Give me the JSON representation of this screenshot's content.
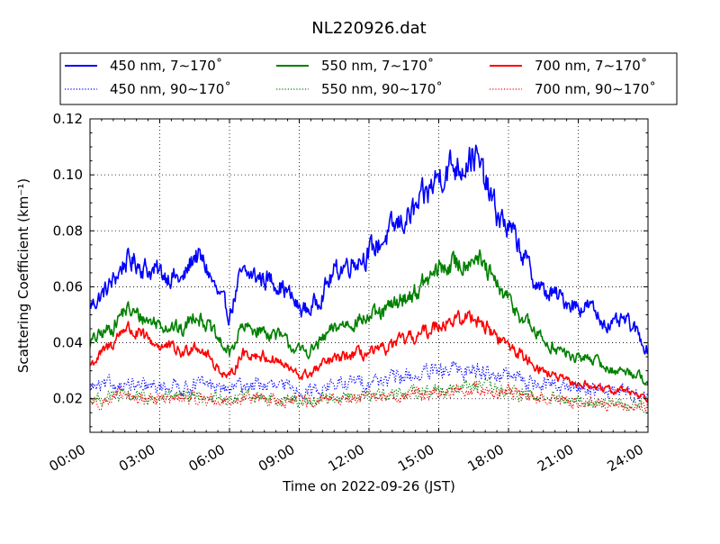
{
  "chart_data": {
    "type": "line",
    "title": "NL220926.dat",
    "xlabel": "Time on 2022-09-26 (JST)",
    "ylabel": "Scattering Coefficient (km⁻¹)",
    "xlim": [
      0,
      24
    ],
    "ylim": [
      0.008,
      0.12
    ],
    "grid": true,
    "legend_position": "top",
    "x_ticks": [
      0,
      3,
      6,
      9,
      12,
      15,
      18,
      21,
      24
    ],
    "x_tick_labels": [
      "00:00",
      "03:00",
      "06:00",
      "09:00",
      "12:00",
      "15:00",
      "18:00",
      "21:00",
      "24:00"
    ],
    "y_ticks": [
      0.02,
      0.04,
      0.06,
      0.08,
      0.1,
      0.12
    ],
    "y_tick_labels": [
      "0.02",
      "0.04",
      "0.06",
      "0.08",
      "0.10",
      "0.12"
    ],
    "x": [
      0,
      0.5,
      1,
      1.5,
      2,
      2.5,
      3,
      3.5,
      4,
      4.5,
      5,
      5.5,
      6,
      6.5,
      7,
      7.5,
      8,
      8.5,
      9,
      9.5,
      10,
      10.5,
      11,
      11.5,
      12,
      12.5,
      13,
      13.5,
      14,
      14.5,
      15,
      15.5,
      16,
      16.5,
      17,
      17.5,
      18,
      18.5,
      19,
      19.5,
      20,
      20.5,
      21,
      21.5,
      22,
      22.5,
      23,
      23.5,
      24
    ],
    "series": [
      {
        "name": "450 nm, 7∼170˚",
        "color": "#0000ff",
        "style": "solid",
        "values": [
          0.053,
          0.057,
          0.062,
          0.069,
          0.069,
          0.066,
          0.065,
          0.064,
          0.062,
          0.072,
          0.067,
          0.057,
          0.05,
          0.064,
          0.064,
          0.063,
          0.062,
          0.058,
          0.052,
          0.052,
          0.058,
          0.065,
          0.068,
          0.07,
          0.072,
          0.076,
          0.08,
          0.084,
          0.087,
          0.093,
          0.1,
          0.103,
          0.104,
          0.108,
          0.097,
          0.086,
          0.081,
          0.074,
          0.064,
          0.058,
          0.057,
          0.055,
          0.053,
          0.053,
          0.048,
          0.046,
          0.048,
          0.044,
          0.037
        ]
      },
      {
        "name": "550 nm, 7∼170˚",
        "color": "#008000",
        "style": "solid",
        "values": [
          0.04,
          0.043,
          0.046,
          0.052,
          0.05,
          0.048,
          0.047,
          0.046,
          0.044,
          0.051,
          0.047,
          0.041,
          0.036,
          0.045,
          0.045,
          0.044,
          0.043,
          0.04,
          0.037,
          0.037,
          0.041,
          0.045,
          0.047,
          0.048,
          0.049,
          0.05,
          0.053,
          0.056,
          0.058,
          0.062,
          0.066,
          0.068,
          0.068,
          0.072,
          0.066,
          0.06,
          0.055,
          0.05,
          0.045,
          0.041,
          0.038,
          0.036,
          0.034,
          0.035,
          0.032,
          0.03,
          0.03,
          0.029,
          0.026
        ]
      },
      {
        "name": "700 nm, 7∼170˚",
        "color": "#ff0000",
        "style": "solid",
        "values": [
          0.032,
          0.036,
          0.04,
          0.046,
          0.043,
          0.041,
          0.039,
          0.038,
          0.036,
          0.04,
          0.036,
          0.031,
          0.027,
          0.036,
          0.036,
          0.035,
          0.034,
          0.031,
          0.028,
          0.029,
          0.032,
          0.034,
          0.035,
          0.036,
          0.036,
          0.037,
          0.039,
          0.041,
          0.042,
          0.044,
          0.047,
          0.048,
          0.048,
          0.05,
          0.046,
          0.042,
          0.039,
          0.036,
          0.033,
          0.03,
          0.028,
          0.026,
          0.025,
          0.025,
          0.023,
          0.023,
          0.023,
          0.022,
          0.02
        ]
      },
      {
        "name": "450 nm, 90∼170˚",
        "color": "#0000ff",
        "style": "dotted",
        "values": [
          0.024,
          0.024,
          0.025,
          0.025,
          0.024,
          0.024,
          0.024,
          0.025,
          0.024,
          0.025,
          0.025,
          0.024,
          0.023,
          0.025,
          0.025,
          0.025,
          0.024,
          0.024,
          0.023,
          0.023,
          0.024,
          0.025,
          0.025,
          0.026,
          0.026,
          0.027,
          0.027,
          0.028,
          0.028,
          0.029,
          0.029,
          0.03,
          0.03,
          0.031,
          0.03,
          0.029,
          0.028,
          0.027,
          0.026,
          0.025,
          0.025,
          0.024,
          0.024,
          0.024,
          0.023,
          0.023,
          0.023,
          0.022,
          0.021
        ]
      },
      {
        "name": "550 nm, 90∼170˚",
        "color": "#008000",
        "style": "dotted",
        "values": [
          0.02,
          0.02,
          0.021,
          0.021,
          0.021,
          0.02,
          0.02,
          0.021,
          0.02,
          0.021,
          0.021,
          0.02,
          0.019,
          0.021,
          0.021,
          0.021,
          0.02,
          0.02,
          0.019,
          0.019,
          0.02,
          0.02,
          0.021,
          0.021,
          0.021,
          0.022,
          0.022,
          0.022,
          0.023,
          0.023,
          0.023,
          0.024,
          0.024,
          0.025,
          0.024,
          0.023,
          0.022,
          0.022,
          0.021,
          0.02,
          0.02,
          0.019,
          0.019,
          0.019,
          0.019,
          0.018,
          0.018,
          0.018,
          0.017
        ]
      },
      {
        "name": "700 nm, 90∼170˚",
        "color": "#ff0000",
        "style": "dotted",
        "values": [
          0.019,
          0.019,
          0.02,
          0.021,
          0.02,
          0.02,
          0.02,
          0.02,
          0.02,
          0.02,
          0.02,
          0.019,
          0.019,
          0.02,
          0.02,
          0.02,
          0.019,
          0.019,
          0.019,
          0.019,
          0.019,
          0.02,
          0.02,
          0.02,
          0.02,
          0.021,
          0.021,
          0.021,
          0.022,
          0.022,
          0.022,
          0.023,
          0.023,
          0.024,
          0.023,
          0.022,
          0.022,
          0.021,
          0.021,
          0.02,
          0.02,
          0.019,
          0.019,
          0.019,
          0.018,
          0.018,
          0.018,
          0.018,
          0.017
        ]
      }
    ]
  }
}
